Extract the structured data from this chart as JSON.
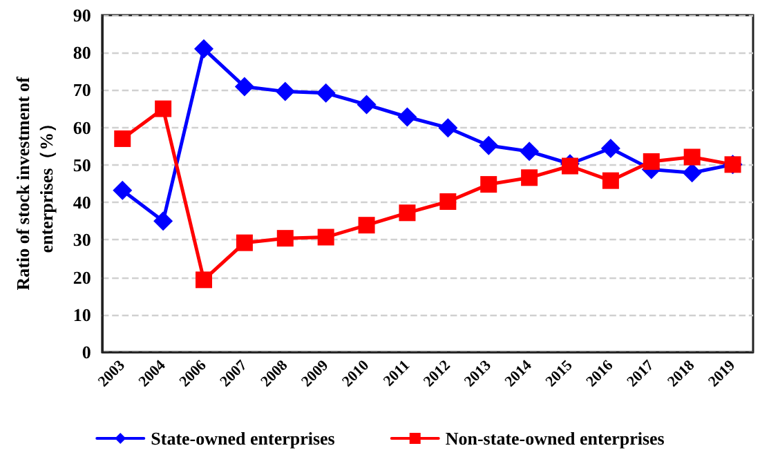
{
  "chart_data": {
    "type": "line",
    "ylabel": "Ratio of stock investment of\nenterprises（%）",
    "categories": [
      "2003",
      "2004",
      "2006",
      "2007",
      "2008",
      "2009",
      "2010",
      "2011",
      "2012",
      "2013",
      "2014",
      "2015",
      "2016",
      "2017",
      "2018",
      "2019"
    ],
    "series": [
      {
        "name": "State-owned enterprises",
        "color": "#0000ff",
        "marker": "diamond",
        "values": [
          43.2,
          35,
          81,
          70.9,
          69.6,
          69.2,
          66.1,
          62.8,
          59.9,
          55.2,
          53.6,
          50.3,
          54.4,
          48.8,
          47.9,
          50.1
        ]
      },
      {
        "name": "Non-state-owned enterprises",
        "color": "#ff0000",
        "marker": "square",
        "values": [
          57,
          65,
          19.3,
          29.2,
          30.4,
          30.7,
          33.9,
          37.2,
          40.2,
          44.8,
          46.6,
          49.7,
          45.8,
          50.9,
          52.1,
          50.1
        ]
      }
    ],
    "ylim": [
      0,
      90
    ],
    "yticks": [
      0,
      10,
      20,
      30,
      40,
      50,
      60,
      70,
      80,
      90
    ],
    "grid": "y",
    "legend": "bottom",
    "line_style": "solid"
  }
}
